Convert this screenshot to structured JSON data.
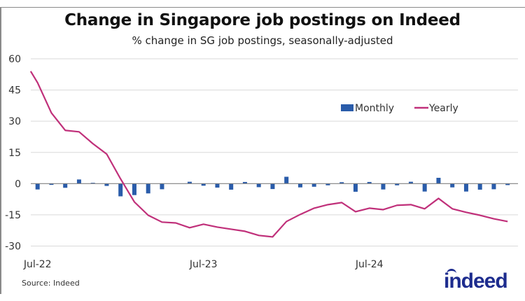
{
  "title": "Change in Singapore job postings on Indeed",
  "subtitle": "% change in SG job postings, seasonally-adjusted",
  "source": "Source: Indeed",
  "logo_text": "indeed",
  "chart_data": {
    "type": "bar+line",
    "title": "Change in Singapore job postings on Indeed",
    "subtitle": "% change in SG job postings, seasonally-adjusted",
    "xlabel": "",
    "ylabel": "",
    "ylim": [
      -30,
      60
    ],
    "yticks": [
      60,
      45,
      30,
      15,
      0,
      -15,
      -30
    ],
    "ytick_labels": [
      "60",
      "45",
      "30",
      "15",
      "0",
      "-15",
      "-30"
    ],
    "xtick_labels": [
      {
        "label": "Jul-22",
        "category": "Jul-22"
      },
      {
        "label": "Jul-23",
        "category": "Jul-23"
      },
      {
        "label": "Jul-24",
        "category": "Jul-24"
      }
    ],
    "grid": true,
    "legend": {
      "placement": "top-right",
      "entries": [
        "Monthly",
        "Yearly"
      ]
    },
    "colors": {
      "Monthly": "#2a5caa",
      "Yearly": "#c0307a",
      "grid": "#d9d9d9",
      "zero_line": "#808080"
    },
    "categories": [
      "Jul-22",
      "Aug-22",
      "Sep-22",
      "Oct-22",
      "Nov-22",
      "Dec-22",
      "Jan-23",
      "Feb-23",
      "Mar-23",
      "Apr-23",
      "May-23",
      "Jun-23",
      "Jul-23",
      "Aug-23",
      "Sep-23",
      "Oct-23",
      "Nov-23",
      "Dec-23",
      "Jan-24",
      "Feb-24",
      "Mar-24",
      "Apr-24",
      "May-24",
      "Jun-24",
      "Jul-24",
      "Aug-24",
      "Sep-24",
      "Oct-24",
      "Nov-24",
      "Dec-24",
      "Jan-25",
      "Feb-25",
      "Mar-25",
      "Apr-25",
      "May-25"
    ],
    "series": [
      {
        "name": "Monthly",
        "type": "bar",
        "values": [
          -2.8,
          -0.6,
          -2.0,
          2.0,
          0.4,
          -1.1,
          -6.1,
          -5.5,
          -4.7,
          -2.7,
          0.0,
          0.9,
          -1.0,
          -1.9,
          -2.9,
          0.8,
          -1.7,
          -2.6,
          3.3,
          -1.8,
          -1.5,
          -0.8,
          0.7,
          -3.9,
          0.8,
          -2.8,
          -0.8,
          0.9,
          -3.8,
          2.8,
          -1.8,
          -3.8,
          -2.9,
          -2.7,
          -0.7
        ]
      },
      {
        "name": "Yearly",
        "type": "line",
        "start_value": 54.0,
        "values": [
          48.5,
          34.0,
          25.6,
          24.9,
          19.2,
          14.2,
          2.3,
          -8.8,
          -15.2,
          -18.5,
          -18.9,
          -21.2,
          -19.5,
          -20.9,
          -21.9,
          -22.9,
          -24.9,
          -25.6,
          -18.2,
          -14.8,
          -11.8,
          -10.1,
          -9.1,
          -13.5,
          -11.8,
          -12.5,
          -10.4,
          -10.1,
          -12.1,
          -7.1,
          -12.1,
          -13.8,
          -15.2,
          -16.9,
          -18.2
        ]
      }
    ]
  }
}
